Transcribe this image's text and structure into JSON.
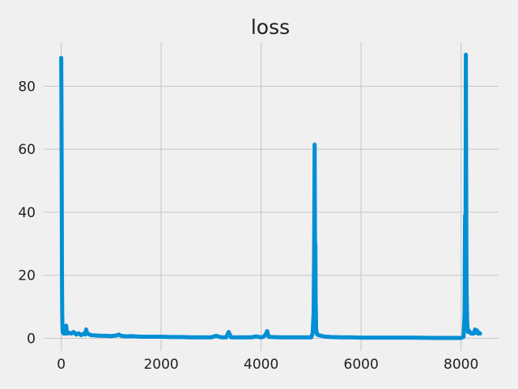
{
  "chart_data": {
    "type": "line",
    "title": "loss",
    "xlabel": "",
    "ylabel": "",
    "xlim": [
      -350,
      8750
    ],
    "ylim": [
      -4,
      94
    ],
    "xticks": [
      0,
      2000,
      4000,
      6000,
      8000
    ],
    "yticks": [
      0,
      20,
      40,
      60,
      80
    ],
    "xtick_labels": [
      "0",
      "2000",
      "4000",
      "6000",
      "8000"
    ],
    "ytick_labels": [
      "0",
      "20",
      "40",
      "60",
      "80"
    ],
    "grid": true,
    "legend": "none",
    "series": [
      {
        "color": "#008fd5",
        "x": [
          0,
          5,
          10,
          15,
          20,
          25,
          30,
          40,
          50,
          60,
          70,
          80,
          100,
          110,
          120,
          150,
          200,
          250,
          300,
          350,
          400,
          450,
          480,
          500,
          520,
          600,
          700,
          800,
          900,
          1000,
          1100,
          1150,
          1200,
          1300,
          1400,
          1500,
          1600,
          1800,
          2000,
          2200,
          2400,
          2600,
          2800,
          3000,
          3100,
          3200,
          3300,
          3350,
          3380,
          3400,
          3500,
          3600,
          3800,
          3900,
          4000,
          4050,
          4100,
          4120,
          4150,
          4200,
          4400,
          4600,
          4800,
          5000,
          5030,
          5050,
          5060,
          5070,
          5075,
          5080,
          5085,
          5090,
          5095,
          5100,
          5110,
          5120,
          5150,
          5200,
          5250,
          5300,
          5400,
          5600,
          5800,
          6000,
          6200,
          6500,
          7000,
          7500,
          8000,
          8050,
          8070,
          8080,
          8090,
          8095,
          8100,
          8105,
          8110,
          8120,
          8130,
          8140,
          8150,
          8200,
          8250,
          8280,
          8300,
          8320,
          8340,
          8360,
          8380
        ],
        "y": [
          89,
          75,
          50,
          20,
          8,
          4,
          2,
          2.5,
          1.5,
          2,
          1.5,
          3,
          4,
          2,
          1.5,
          1.8,
          1.5,
          2,
          1.2,
          1.6,
          1.0,
          1.5,
          1.2,
          2.8,
          1.5,
          1.0,
          0.9,
          0.8,
          0.8,
          0.7,
          0.9,
          1.2,
          0.8,
          0.6,
          0.7,
          0.6,
          0.5,
          0.5,
          0.5,
          0.4,
          0.4,
          0.3,
          0.3,
          0.3,
          0.8,
          0.3,
          0.3,
          2.0,
          1.0,
          0.3,
          0.3,
          0.3,
          0.3,
          0.6,
          0.3,
          0.5,
          1.5,
          2.3,
          0.5,
          0.4,
          0.3,
          0.3,
          0.3,
          0.3,
          1.5,
          8,
          26,
          61.5,
          40,
          22,
          30,
          12,
          8,
          3,
          2,
          1.2,
          1.0,
          0.8,
          0.6,
          0.5,
          0.4,
          0.3,
          0.3,
          0.2,
          0.2,
          0.2,
          0.2,
          0.1,
          0.1,
          0.5,
          8,
          39,
          26,
          90,
          60,
          30,
          16,
          6,
          3,
          2,
          2.5,
          1.5,
          1.5,
          2.8,
          1.8,
          2.5,
          1.5,
          1.8,
          1.5
        ]
      }
    ]
  }
}
